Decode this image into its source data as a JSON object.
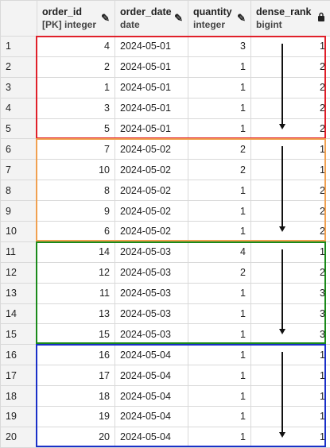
{
  "columns": [
    {
      "name": "",
      "type": ""
    },
    {
      "name": "order_id",
      "type": "[PK] integer",
      "icon": "pencil-icon"
    },
    {
      "name": "order_date",
      "type": "date",
      "icon": "pencil-icon"
    },
    {
      "name": "quantity",
      "type": "integer",
      "icon": "pencil-icon"
    },
    {
      "name": "dense_rank",
      "type": "bigint",
      "icon": "lock-icon"
    }
  ],
  "rows": [
    {
      "n": "1",
      "order_id": "4",
      "order_date": "2024-05-01",
      "quantity": "3",
      "dense_rank": "1"
    },
    {
      "n": "2",
      "order_id": "2",
      "order_date": "2024-05-01",
      "quantity": "1",
      "dense_rank": "2"
    },
    {
      "n": "3",
      "order_id": "1",
      "order_date": "2024-05-01",
      "quantity": "1",
      "dense_rank": "2"
    },
    {
      "n": "4",
      "order_id": "3",
      "order_date": "2024-05-01",
      "quantity": "1",
      "dense_rank": "2"
    },
    {
      "n": "5",
      "order_id": "5",
      "order_date": "2024-05-01",
      "quantity": "1",
      "dense_rank": "2"
    },
    {
      "n": "6",
      "order_id": "7",
      "order_date": "2024-05-02",
      "quantity": "2",
      "dense_rank": "1"
    },
    {
      "n": "7",
      "order_id": "10",
      "order_date": "2024-05-02",
      "quantity": "2",
      "dense_rank": "1"
    },
    {
      "n": "8",
      "order_id": "8",
      "order_date": "2024-05-02",
      "quantity": "1",
      "dense_rank": "2"
    },
    {
      "n": "9",
      "order_id": "9",
      "order_date": "2024-05-02",
      "quantity": "1",
      "dense_rank": "2"
    },
    {
      "n": "10",
      "order_id": "6",
      "order_date": "2024-05-02",
      "quantity": "1",
      "dense_rank": "2"
    },
    {
      "n": "11",
      "order_id": "14",
      "order_date": "2024-05-03",
      "quantity": "4",
      "dense_rank": "1"
    },
    {
      "n": "12",
      "order_id": "12",
      "order_date": "2024-05-03",
      "quantity": "2",
      "dense_rank": "2"
    },
    {
      "n": "13",
      "order_id": "11",
      "order_date": "2024-05-03",
      "quantity": "1",
      "dense_rank": "3"
    },
    {
      "n": "14",
      "order_id": "13",
      "order_date": "2024-05-03",
      "quantity": "1",
      "dense_rank": "3"
    },
    {
      "n": "15",
      "order_id": "15",
      "order_date": "2024-05-03",
      "quantity": "1",
      "dense_rank": "3"
    },
    {
      "n": "16",
      "order_id": "16",
      "order_date": "2024-05-04",
      "quantity": "1",
      "dense_rank": "1"
    },
    {
      "n": "17",
      "order_id": "17",
      "order_date": "2024-05-04",
      "quantity": "1",
      "dense_rank": "1"
    },
    {
      "n": "18",
      "order_id": "18",
      "order_date": "2024-05-04",
      "quantity": "1",
      "dense_rank": "1"
    },
    {
      "n": "19",
      "order_id": "19",
      "order_date": "2024-05-04",
      "quantity": "1",
      "dense_rank": "1"
    },
    {
      "n": "20",
      "order_id": "20",
      "order_date": "2024-05-04",
      "quantity": "1",
      "dense_rank": "1"
    }
  ],
  "groups": [
    {
      "first_row": 1,
      "last_row": 5,
      "color": "#e0202a"
    },
    {
      "first_row": 6,
      "last_row": 10,
      "color": "#f0a050"
    },
    {
      "first_row": 11,
      "last_row": 15,
      "color": "#1a8a1a"
    },
    {
      "first_row": 16,
      "last_row": 20,
      "color": "#1a30c8"
    }
  ]
}
